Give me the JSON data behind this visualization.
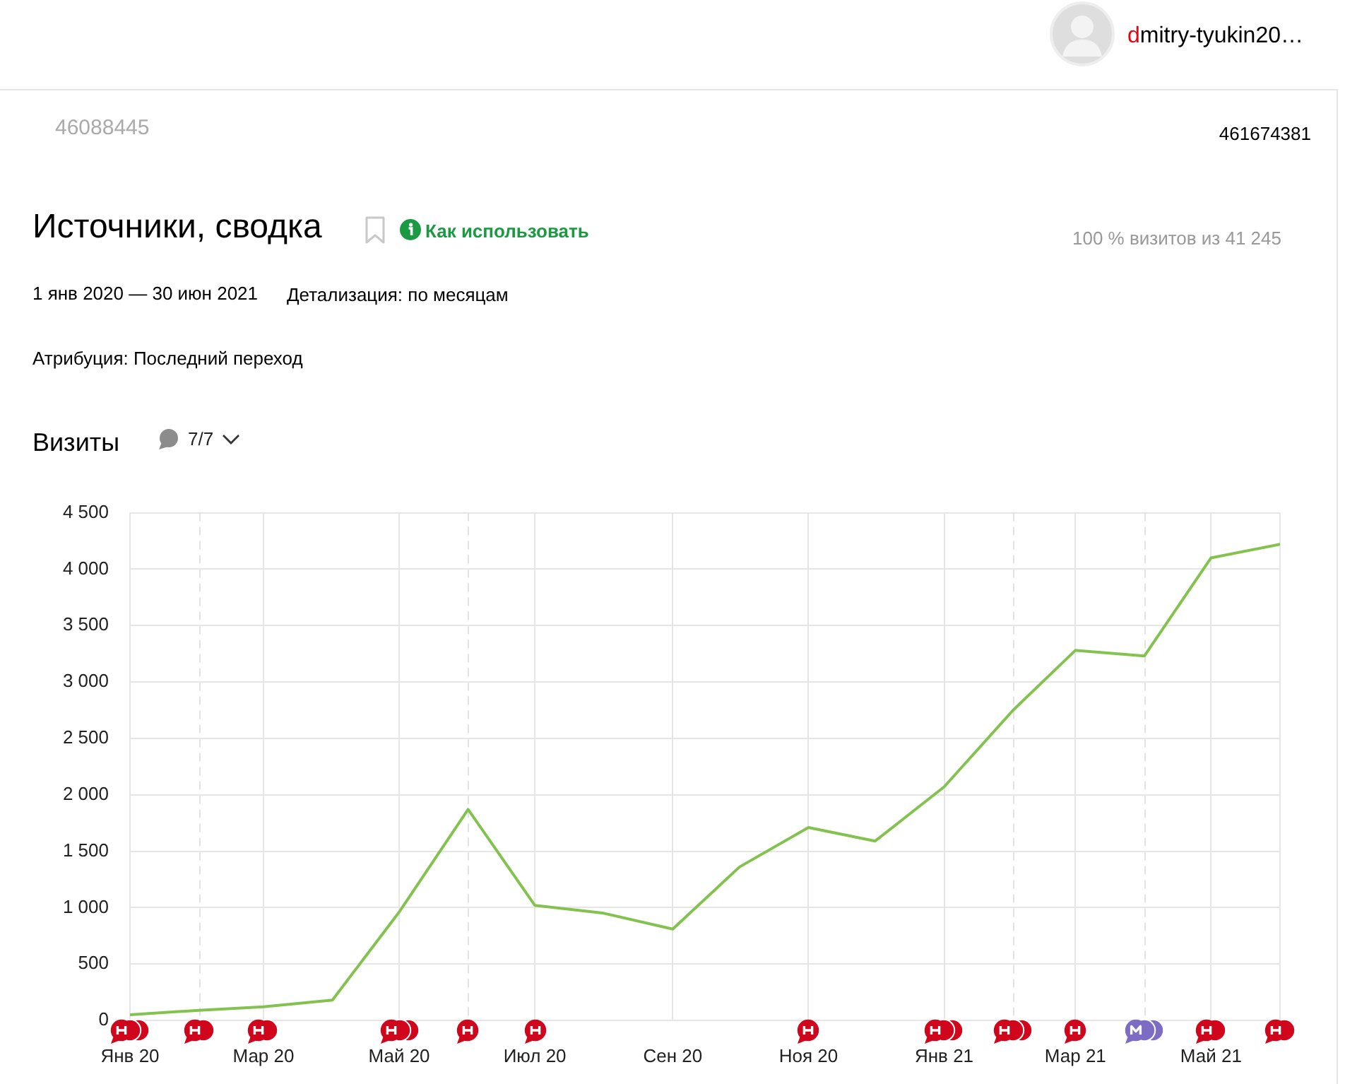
{
  "chart_data": {
    "type": "line",
    "title": "Источники, сводка",
    "subtitle": "1 янв 2020 — 30 июн 2021",
    "ylabel": "Визиты",
    "x": [
      "2020-01",
      "2020-02",
      "2020-03",
      "2020-04",
      "2020-05",
      "2020-06",
      "2020-07",
      "2020-08",
      "2020-09",
      "2020-10",
      "2020-11",
      "2020-12",
      "2021-01",
      "2021-02",
      "2021-03",
      "2021-04",
      "2021-05",
      "2021-06"
    ],
    "series": [
      {
        "color": "#84c250",
        "values": [
          50,
          90,
          120,
          180,
          960,
          1870,
          1020,
          950,
          810,
          1360,
          1710,
          1590,
          2070,
          2750,
          3280,
          3230,
          4100,
          4220
        ]
      }
    ],
    "xlim": [
      "2020-01",
      "2021-06"
    ],
    "xticks": [
      {
        "value": "2020-01",
        "label": "Янв 20"
      },
      {
        "value": "2020-03",
        "label": "Мар 20"
      },
      {
        "value": "2020-05",
        "label": "Май 20"
      },
      {
        "value": "2020-07",
        "label": "Июл 20"
      },
      {
        "value": "2020-09",
        "label": "Сен 20"
      },
      {
        "value": "2020-11",
        "label": "Ноя 20"
      },
      {
        "value": "2021-01",
        "label": "Янв 21"
      },
      {
        "value": "2021-03",
        "label": "Мар 21"
      },
      {
        "value": "2021-05",
        "label": "Май 21"
      },
      {
        "value": "2021-06",
        "label": null
      }
    ],
    "ylim": [
      0,
      4500
    ],
    "yticks": [
      0,
      500,
      {
        "value": 1000,
        "label": "1 000"
      },
      {
        "value": 1500,
        "label": "1 500"
      },
      {
        "value": 2000,
        "label": "2 000"
      },
      {
        "value": 2500,
        "label": "2 500"
      },
      {
        "value": 3000,
        "label": "3 000"
      },
      {
        "value": 3500,
        "label": "3 500"
      },
      {
        "value": 4000,
        "label": "4 000"
      },
      {
        "value": 4500,
        "label": "4 500"
      }
    ],
    "grid": true,
    "legend": false,
    "marker": "none",
    "line_style": "solid",
    "ref_lines": [
      {
        "axis": "x",
        "value": "2020-02",
        "color": "#e2e2e2",
        "line_style": "dashed"
      },
      {
        "axis": "x",
        "value": "2020-06",
        "color": "#e2e2e2",
        "line_style": "dashed"
      },
      {
        "axis": "x",
        "value": "2021-02",
        "color": "#e2e2e2",
        "line_style": "dashed"
      },
      {
        "axis": "x",
        "value": "2021-04",
        "color": "#e2e2e2",
        "line_style": "dashed"
      }
    ],
    "annotations": [
      "Детализация: по месяцам",
      "Атрибуция: Последний переход",
      "100 % визитов из 41 245",
      "7/7",
      "Как использовать",
      "46088445",
      "461674381",
      "dmitry-tyukin20…"
    ]
  }
}
